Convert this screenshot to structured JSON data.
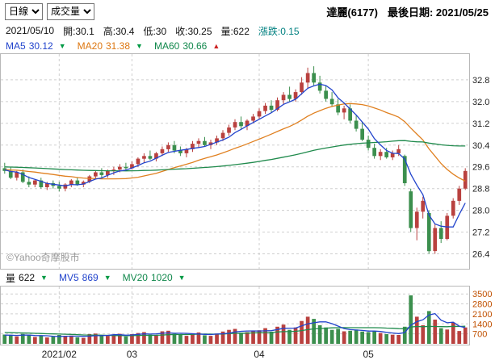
{
  "header": {
    "period": "日線",
    "indicator": "成交量",
    "stock": "達麗(6177)",
    "last_date": "最後日期: 2021/05/25"
  },
  "info": {
    "date": "2021/05/10",
    "fields": [
      "開:30.1",
      "高:30.4",
      "低:30",
      "收:30.25",
      "量:622"
    ],
    "change": "漲跌:0.15"
  },
  "ma_row": {
    "items": [
      {
        "label": "MA5",
        "value": "30.12",
        "arrow": "▼"
      },
      {
        "label": "MA20",
        "value": "31.38",
        "arrow": "▼"
      },
      {
        "label": "MA60",
        "value": "30.66",
        "arrow": "▲"
      }
    ]
  },
  "vol_row": {
    "items": [
      {
        "label": "量",
        "value": "622",
        "arrow": "▼"
      },
      {
        "label": "MV5",
        "value": "869",
        "arrow": "▼"
      },
      {
        "label": "MV20",
        "value": "1020",
        "arrow": "▼"
      }
    ]
  },
  "watermark": "©Yahoo奇摩股市",
  "chart_data": {
    "type": "candlestick",
    "title": "達麗(6177) 日線",
    "price_axis": {
      "min": 26.0,
      "max": 33.6,
      "ticks": [
        26.4,
        27.2,
        28.0,
        28.8,
        29.6,
        30.4,
        31.2,
        32.0,
        32.8
      ]
    },
    "volume_axis": {
      "min": 0,
      "max": 3850,
      "ticks": [
        700,
        1400,
        2100,
        2800,
        3500
      ]
    },
    "months": [
      {
        "label": "2021/02",
        "index": 9
      },
      {
        "label": "03",
        "index": 21
      },
      {
        "label": "04",
        "index": 42
      },
      {
        "label": "05",
        "index": 60
      }
    ],
    "colors": {
      "up": "#b9413f",
      "down": "#3c8f4e",
      "ma5": "#2244cc",
      "ma20": "#e08020",
      "ma60": "#1f8a4c",
      "mv5": "#2244cc",
      "mv20": "#1f8a4c",
      "grid": "#cfcfcf",
      "frame": "#b8b8b8",
      "price_label": "#222222",
      "volume_label": "#c05000"
    },
    "ma_seeds": {
      "ma5": 29.5,
      "ma20": 29.5,
      "ma60": 29.6,
      "mv5": 600,
      "mv20": 800
    },
    "selected": {
      "date": "2021/05/10",
      "open": 30.1,
      "high": 30.4,
      "low": 30.0,
      "close": 30.25,
      "volume": 622,
      "change": 0.15,
      "ma5": 30.12,
      "ma20": 31.38,
      "ma60": 30.66,
      "mv5": 869,
      "mv20": 1020
    },
    "candles": [
      [
        29.55,
        29.75,
        29.35,
        29.45,
        650
      ],
      [
        29.45,
        29.6,
        29.15,
        29.2,
        580
      ],
      [
        29.2,
        29.45,
        29.1,
        29.4,
        520
      ],
      [
        29.4,
        29.5,
        29.0,
        29.05,
        700
      ],
      [
        29.05,
        29.25,
        28.85,
        28.95,
        640
      ],
      [
        28.95,
        29.15,
        28.85,
        29.1,
        480
      ],
      [
        29.1,
        29.2,
        28.8,
        28.85,
        560
      ],
      [
        28.85,
        29.05,
        28.75,
        29.0,
        450
      ],
      [
        29.0,
        29.1,
        28.8,
        28.9,
        500
      ],
      [
        28.9,
        29.05,
        28.7,
        28.8,
        620
      ],
      [
        28.8,
        29.0,
        28.7,
        28.95,
        540
      ],
      [
        28.95,
        29.15,
        28.85,
        29.1,
        580
      ],
      [
        29.1,
        29.2,
        28.9,
        28.95,
        460
      ],
      [
        28.95,
        29.1,
        28.85,
        29.05,
        420
      ],
      [
        29.05,
        29.3,
        29.0,
        29.25,
        680
      ],
      [
        29.25,
        29.45,
        29.15,
        29.4,
        720
      ],
      [
        29.4,
        29.55,
        29.2,
        29.3,
        600
      ],
      [
        29.3,
        29.5,
        29.2,
        29.45,
        560
      ],
      [
        29.45,
        29.6,
        29.3,
        29.5,
        640
      ],
      [
        29.5,
        29.7,
        29.4,
        29.6,
        700
      ],
      [
        29.6,
        29.75,
        29.45,
        29.55,
        520
      ],
      [
        29.55,
        29.8,
        29.5,
        29.7,
        680
      ],
      [
        29.7,
        29.95,
        29.6,
        29.9,
        760
      ],
      [
        29.9,
        30.1,
        29.75,
        30.0,
        820
      ],
      [
        30.0,
        30.2,
        29.85,
        29.9,
        640
      ],
      [
        29.9,
        30.15,
        29.8,
        30.1,
        580
      ],
      [
        30.1,
        30.35,
        30.0,
        30.25,
        880
      ],
      [
        30.25,
        30.5,
        30.15,
        30.4,
        920
      ],
      [
        30.4,
        30.55,
        30.1,
        30.2,
        700
      ],
      [
        30.2,
        30.35,
        30.0,
        30.1,
        620
      ],
      [
        30.1,
        30.3,
        29.95,
        30.25,
        560
      ],
      [
        30.25,
        30.55,
        30.15,
        30.45,
        740
      ],
      [
        30.45,
        30.65,
        30.3,
        30.55,
        800
      ],
      [
        30.55,
        30.7,
        30.35,
        30.4,
        600
      ],
      [
        30.4,
        30.6,
        30.25,
        30.5,
        560
      ],
      [
        30.5,
        30.75,
        30.4,
        30.65,
        720
      ],
      [
        30.65,
        30.95,
        30.55,
        30.85,
        860
      ],
      [
        30.85,
        31.15,
        30.75,
        31.05,
        980
      ],
      [
        31.05,
        31.35,
        30.95,
        31.25,
        1050
      ],
      [
        31.25,
        31.45,
        31.0,
        31.1,
        780
      ],
      [
        31.1,
        31.35,
        30.95,
        31.3,
        820
      ],
      [
        31.3,
        31.55,
        31.2,
        31.45,
        900
      ],
      [
        31.45,
        31.75,
        31.35,
        31.65,
        950
      ],
      [
        31.65,
        31.95,
        31.55,
        31.85,
        1100
      ],
      [
        31.85,
        32.05,
        31.6,
        31.7,
        850
      ],
      [
        31.7,
        32.15,
        31.65,
        32.05,
        1200
      ],
      [
        32.05,
        32.35,
        31.9,
        32.25,
        1350
      ],
      [
        32.25,
        32.55,
        32.0,
        32.1,
        980
      ],
      [
        32.1,
        32.45,
        32.0,
        32.35,
        1150
      ],
      [
        32.35,
        32.9,
        32.25,
        32.7,
        1600
      ],
      [
        32.7,
        33.25,
        32.5,
        33.05,
        1900
      ],
      [
        33.05,
        33.3,
        32.6,
        32.7,
        1750
      ],
      [
        32.7,
        32.95,
        32.3,
        32.4,
        1300
      ],
      [
        32.4,
        32.6,
        32.0,
        32.1,
        1150
      ],
      [
        32.1,
        32.35,
        31.8,
        31.9,
        980
      ],
      [
        31.9,
        32.1,
        31.5,
        31.6,
        1050
      ],
      [
        31.6,
        31.85,
        31.35,
        31.75,
        880
      ],
      [
        31.75,
        31.9,
        31.2,
        31.3,
        920
      ],
      [
        31.3,
        31.5,
        30.9,
        31.0,
        1000
      ],
      [
        31.0,
        31.25,
        30.55,
        30.6,
        860
      ],
      [
        30.6,
        30.75,
        30.2,
        30.3,
        820
      ],
      [
        30.3,
        30.45,
        29.9,
        30.0,
        900
      ],
      [
        30.0,
        30.25,
        29.85,
        30.15,
        760
      ],
      [
        30.15,
        30.3,
        29.9,
        29.95,
        680
      ],
      [
        29.95,
        30.2,
        29.85,
        30.1,
        640
      ],
      [
        30.1,
        30.4,
        30.0,
        30.25,
        622
      ],
      [
        30.0,
        30.05,
        28.9,
        29.0,
        1200
      ],
      [
        28.7,
        28.8,
        27.2,
        27.35,
        3400
      ],
      [
        27.35,
        28.1,
        26.9,
        27.95,
        1900
      ],
      [
        27.95,
        28.5,
        27.7,
        28.35,
        1300
      ],
      [
        27.9,
        28.0,
        26.4,
        26.5,
        2300
      ],
      [
        26.5,
        27.5,
        26.4,
        27.35,
        1700
      ],
      [
        27.35,
        27.6,
        26.8,
        26.95,
        1100
      ],
      [
        26.95,
        27.9,
        26.9,
        27.8,
        1000
      ],
      [
        27.8,
        28.45,
        27.7,
        28.35,
        1500
      ],
      [
        28.35,
        28.9,
        28.2,
        28.8,
        900
      ],
      [
        28.8,
        29.55,
        28.75,
        29.45,
        1150
      ]
    ]
  }
}
